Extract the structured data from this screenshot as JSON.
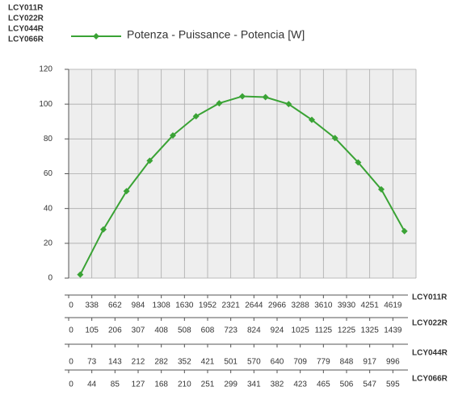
{
  "chart_data": {
    "type": "line",
    "models": [
      "LCY011R",
      "LCY022R",
      "LCY044R",
      "LCY066R"
    ],
    "series": [
      {
        "name": "Potenza - Puissance - Potencia [W]",
        "color": "#3aa335",
        "values": [
          2,
          28,
          50,
          67.5,
          82,
          93,
          100.5,
          104.5,
          104,
          100,
          91,
          80.5,
          66.5,
          51,
          27
        ]
      }
    ],
    "ylim": [
      0,
      120
    ],
    "yticks": [
      0,
      20,
      40,
      60,
      80,
      100,
      120
    ],
    "grid": true,
    "x_axes": [
      {
        "name": "LCY011R",
        "ticks": [
          0,
          338,
          662,
          984,
          1308,
          1630,
          1952,
          2321,
          2644,
          2966,
          3288,
          3610,
          3930,
          4251,
          4619
        ]
      },
      {
        "name": "LCY022R",
        "ticks": [
          0,
          105,
          206,
          307,
          408,
          508,
          608,
          723,
          824,
          924,
          1025,
          1125,
          1225,
          1325,
          1439
        ]
      },
      {
        "name": "LCY044R",
        "ticks": [
          0,
          73,
          143,
          212,
          282,
          352,
          421,
          501,
          570,
          640,
          709,
          779,
          848,
          917,
          996
        ]
      },
      {
        "name": "LCY066R",
        "ticks": [
          0,
          44,
          85,
          127,
          168,
          210,
          251,
          299,
          341,
          382,
          423,
          465,
          506,
          547,
          595
        ]
      }
    ]
  }
}
